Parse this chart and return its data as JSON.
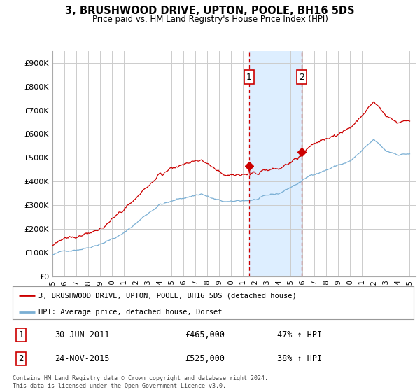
{
  "title": "3, BRUSHWOOD DRIVE, UPTON, POOLE, BH16 5DS",
  "subtitle": "Price paid vs. HM Land Registry's House Price Index (HPI)",
  "ylabel_ticks": [
    "£0",
    "£100K",
    "£200K",
    "£300K",
    "£400K",
    "£500K",
    "£600K",
    "£700K",
    "£800K",
    "£900K"
  ],
  "ytick_values": [
    0,
    100000,
    200000,
    300000,
    400000,
    500000,
    600000,
    700000,
    800000,
    900000
  ],
  "ylim": [
    0,
    950000
  ],
  "sale1": {
    "date_num": 2011.5,
    "price": 465000,
    "label": "1",
    "date_str": "30-JUN-2011",
    "pct": "47% ↑ HPI"
  },
  "sale2": {
    "date_num": 2015.92,
    "price": 525000,
    "label": "2",
    "date_str": "24-NOV-2015",
    "pct": "38% ↑ HPI"
  },
  "line_color_property": "#cc0000",
  "line_color_hpi": "#7aafd4",
  "highlight_fill": "#ddeeff",
  "vline_color": "#cc0000",
  "legend_label_property": "3, BRUSHWOOD DRIVE, UPTON, POOLE, BH16 5DS (detached house)",
  "legend_label_hpi": "HPI: Average price, detached house, Dorset",
  "footnote": "Contains HM Land Registry data © Crown copyright and database right 2024.\nThis data is licensed under the Open Government Licence v3.0.",
  "background_color": "#ffffff",
  "grid_color": "#cccccc",
  "xlim_start": 1995.0,
  "xlim_end": 2025.5,
  "xtick_years": [
    1995,
    1996,
    1997,
    1998,
    1999,
    2000,
    2001,
    2002,
    2003,
    2004,
    2005,
    2006,
    2007,
    2008,
    2009,
    2010,
    2011,
    2012,
    2013,
    2014,
    2015,
    2016,
    2017,
    2018,
    2019,
    2020,
    2021,
    2022,
    2023,
    2024,
    2025
  ]
}
